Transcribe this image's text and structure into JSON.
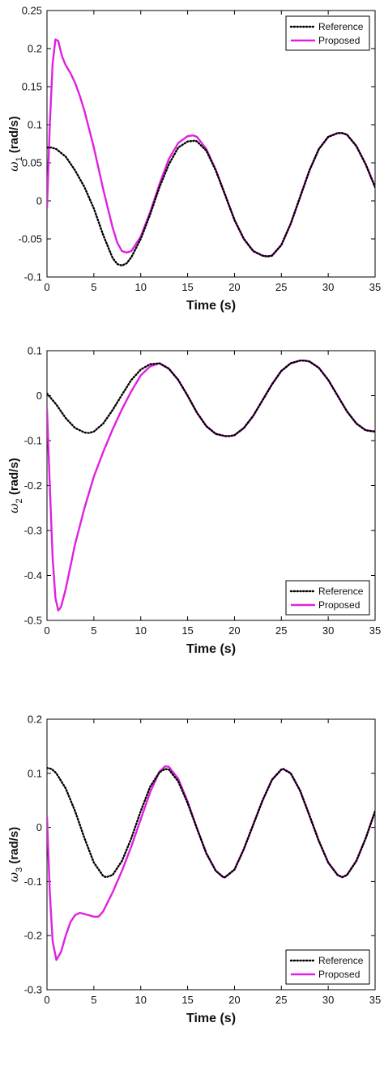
{
  "colors": {
    "reference": "#000000",
    "proposed": "#e020e0"
  },
  "chart_data": [
    {
      "type": "line",
      "ylabel_symbol": "ω",
      "ylabel_sub": "1",
      "ylabel_unit": " (rad/s)",
      "xlabel": "Time (s)",
      "xlim": [
        0,
        35
      ],
      "ylim": [
        -0.1,
        0.25
      ],
      "xticks": [
        "0",
        "5",
        "10",
        "15",
        "20",
        "25",
        "30",
        "35"
      ],
      "yticks": [
        "-0.1",
        "-0.05",
        "0",
        "0.05",
        "0.1",
        "0.15",
        "0.2",
        "0.25"
      ],
      "legend_position": "top-right",
      "series": [
        {
          "name": "Reference",
          "style": "dotted",
          "x": [
            0,
            0.5,
            1,
            2,
            3,
            4,
            5,
            6,
            7,
            7.5,
            8,
            8.5,
            9,
            10,
            11,
            12,
            13,
            14,
            15,
            15.8,
            16,
            17,
            18,
            19,
            20,
            21,
            22,
            23,
            23.5,
            24,
            25,
            26,
            27,
            28,
            29,
            30,
            31,
            31.5,
            32,
            33,
            34,
            35
          ],
          "y": [
            0.07,
            0.07,
            0.068,
            0.058,
            0.04,
            0.018,
            -0.01,
            -0.045,
            -0.075,
            -0.083,
            -0.085,
            -0.082,
            -0.074,
            -0.05,
            -0.018,
            0.018,
            0.048,
            0.07,
            0.078,
            0.079,
            0.078,
            0.066,
            0.04,
            0.008,
            -0.025,
            -0.05,
            -0.066,
            -0.072,
            -0.073,
            -0.072,
            -0.058,
            -0.03,
            0.005,
            0.04,
            0.068,
            0.084,
            0.089,
            0.089,
            0.087,
            0.072,
            0.048,
            0.018
          ]
        },
        {
          "name": "Proposed",
          "style": "solid",
          "x": [
            0,
            0.3,
            0.6,
            0.9,
            1.2,
            1.6,
            2,
            2.5,
            3,
            3.5,
            4,
            5,
            6,
            7,
            7.5,
            8,
            8.5,
            9,
            10,
            11,
            12,
            13,
            14,
            15,
            15.6,
            16,
            17,
            18,
            19,
            20,
            21,
            22,
            23,
            23.5,
            24,
            25,
            26,
            27,
            28,
            29,
            30,
            31,
            31.5,
            32,
            33,
            34,
            35
          ],
          "y": [
            -0.01,
            0.1,
            0.18,
            0.212,
            0.21,
            0.19,
            0.178,
            0.168,
            0.155,
            0.138,
            0.118,
            0.07,
            0.015,
            -0.035,
            -0.055,
            -0.066,
            -0.068,
            -0.066,
            -0.047,
            -0.015,
            0.022,
            0.055,
            0.076,
            0.085,
            0.086,
            0.084,
            0.068,
            0.041,
            0.008,
            -0.025,
            -0.05,
            -0.066,
            -0.072,
            -0.073,
            -0.072,
            -0.058,
            -0.03,
            0.005,
            0.04,
            0.068,
            0.084,
            0.089,
            0.089,
            0.087,
            0.072,
            0.048,
            0.018
          ]
        }
      ]
    },
    {
      "type": "line",
      "ylabel_symbol": "ω",
      "ylabel_sub": "2",
      "ylabel_unit": " (rad/s)",
      "xlabel": "Time (s)",
      "xlim": [
        0,
        35
      ],
      "ylim": [
        -0.5,
        0.1
      ],
      "xticks": [
        "0",
        "5",
        "10",
        "15",
        "20",
        "25",
        "30",
        "35"
      ],
      "yticks": [
        "-0.5",
        "-0.4",
        "-0.3",
        "-0.2",
        "-0.1",
        "0",
        "0.1"
      ],
      "legend_position": "bottom-right",
      "series": [
        {
          "name": "Reference",
          "style": "dotted",
          "x": [
            0,
            1,
            2,
            3,
            4,
            4.5,
            5,
            6,
            7,
            8,
            9,
            10,
            11,
            12,
            13,
            14,
            15,
            16,
            17,
            18,
            19,
            19.5,
            20,
            21,
            22,
            23,
            24,
            25,
            26,
            27,
            27.5,
            28,
            29,
            30,
            31,
            32,
            33,
            34,
            35
          ],
          "y": [
            0.005,
            -0.02,
            -0.05,
            -0.072,
            -0.082,
            -0.083,
            -0.08,
            -0.062,
            -0.032,
            0.002,
            0.035,
            0.058,
            0.07,
            0.072,
            0.06,
            0.035,
            0.0,
            -0.038,
            -0.068,
            -0.085,
            -0.09,
            -0.09,
            -0.088,
            -0.072,
            -0.045,
            -0.01,
            0.025,
            0.055,
            0.072,
            0.078,
            0.078,
            0.076,
            0.062,
            0.035,
            0.0,
            -0.035,
            -0.062,
            -0.077,
            -0.08
          ]
        },
        {
          "name": "Proposed",
          "style": "solid",
          "x": [
            0,
            0.3,
            0.6,
            0.9,
            1.2,
            1.5,
            2,
            2.5,
            3,
            4,
            5,
            6,
            7,
            8,
            9,
            10,
            11,
            12,
            13,
            14,
            15,
            16,
            17,
            18,
            19,
            19.5,
            20,
            21,
            22,
            23,
            24,
            25,
            26,
            27,
            27.5,
            28,
            29,
            30,
            31,
            32,
            33,
            34,
            35
          ],
          "y": [
            -0.03,
            -0.2,
            -0.36,
            -0.45,
            -0.478,
            -0.47,
            -0.43,
            -0.38,
            -0.33,
            -0.25,
            -0.18,
            -0.125,
            -0.075,
            -0.03,
            0.01,
            0.045,
            0.065,
            0.072,
            0.06,
            0.035,
            0.0,
            -0.038,
            -0.068,
            -0.085,
            -0.09,
            -0.09,
            -0.088,
            -0.072,
            -0.045,
            -0.01,
            0.025,
            0.055,
            0.072,
            0.078,
            0.078,
            0.076,
            0.062,
            0.035,
            0.0,
            -0.035,
            -0.062,
            -0.077,
            -0.08
          ]
        }
      ]
    },
    {
      "type": "line",
      "ylabel_symbol": "ω",
      "ylabel_sub": "3",
      "ylabel_unit": " (rad/s)",
      "xlabel": "Time (s)",
      "xlim": [
        0,
        35
      ],
      "ylim": [
        -0.3,
        0.2
      ],
      "xticks": [
        "0",
        "5",
        "10",
        "15",
        "20",
        "25",
        "30",
        "35"
      ],
      "yticks": [
        "-0.3",
        "-0.2",
        "-0.1",
        "0",
        "0.1",
        "0.2"
      ],
      "legend_position": "bottom-right",
      "series": [
        {
          "name": "Reference",
          "style": "dotted",
          "x": [
            0,
            0.5,
            1,
            2,
            3,
            4,
            5,
            6,
            6.3,
            7,
            8,
            9,
            10,
            11,
            12,
            12.6,
            13,
            14,
            15,
            16,
            17,
            18,
            18.8,
            19,
            20,
            21,
            22,
            23,
            24,
            25,
            25.2,
            26,
            27,
            28,
            29,
            30,
            31,
            31.5,
            32,
            33,
            34,
            35
          ],
          "y": [
            0.11,
            0.108,
            0.1,
            0.072,
            0.03,
            -0.02,
            -0.065,
            -0.09,
            -0.092,
            -0.088,
            -0.062,
            -0.02,
            0.03,
            0.075,
            0.102,
            0.108,
            0.107,
            0.085,
            0.045,
            -0.002,
            -0.048,
            -0.08,
            -0.092,
            -0.092,
            -0.078,
            -0.04,
            0.005,
            0.05,
            0.088,
            0.107,
            0.108,
            0.1,
            0.068,
            0.022,
            -0.025,
            -0.065,
            -0.088,
            -0.092,
            -0.088,
            -0.062,
            -0.02,
            0.03
          ]
        },
        {
          "name": "Proposed",
          "style": "solid",
          "x": [
            0,
            0.3,
            0.6,
            1,
            1.5,
            2,
            2.5,
            3,
            3.5,
            4,
            5,
            5.5,
            6,
            7,
            8,
            9,
            10,
            11,
            12,
            12.6,
            13,
            14,
            15,
            16,
            17,
            18,
            18.8,
            19,
            20,
            21,
            22,
            23,
            24,
            25,
            25.2,
            26,
            27,
            28,
            29,
            30,
            31,
            31.5,
            32,
            33,
            34,
            35
          ],
          "y": [
            0.02,
            -0.12,
            -0.21,
            -0.245,
            -0.23,
            -0.2,
            -0.175,
            -0.162,
            -0.158,
            -0.16,
            -0.165,
            -0.165,
            -0.155,
            -0.12,
            -0.08,
            -0.035,
            0.015,
            0.065,
            0.103,
            0.113,
            0.112,
            0.09,
            0.048,
            -0.002,
            -0.048,
            -0.08,
            -0.092,
            -0.092,
            -0.078,
            -0.04,
            0.005,
            0.05,
            0.088,
            0.107,
            0.108,
            0.1,
            0.068,
            0.022,
            -0.025,
            -0.065,
            -0.088,
            -0.092,
            -0.088,
            -0.062,
            -0.02,
            0.03
          ]
        }
      ]
    }
  ]
}
